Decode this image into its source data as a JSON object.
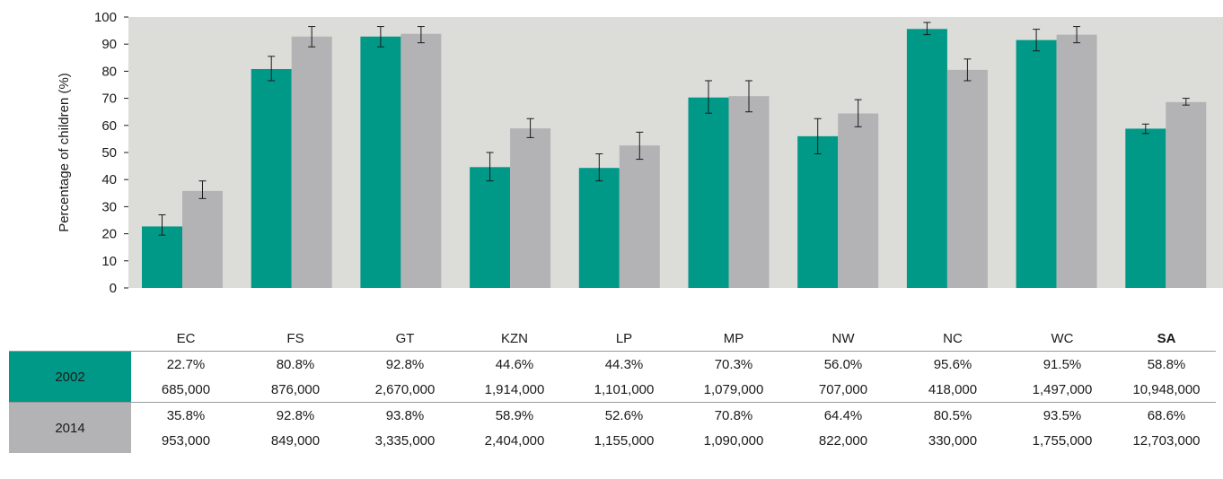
{
  "colors": {
    "series_2002": "#009988",
    "series_2014": "#b3b3b6",
    "plot_background": "#dcdcd9",
    "error_bar": "#1a1a1a"
  },
  "chart_data": {
    "type": "bar",
    "ylabel": "Percentage of children (%)",
    "ylim": [
      0,
      100
    ],
    "yticks": [
      "0",
      "10",
      "20",
      "30",
      "40",
      "50",
      "60",
      "70",
      "80",
      "90",
      "100"
    ],
    "grid": false,
    "categories": [
      "EC",
      "FS",
      "GT",
      "KZN",
      "LP",
      "MP",
      "NW",
      "NC",
      "WC",
      "SA"
    ],
    "series": [
      {
        "name": "2002",
        "values": [
          22.7,
          80.8,
          92.8,
          44.6,
          44.3,
          70.3,
          56.0,
          95.6,
          91.5,
          58.8
        ],
        "error_low": [
          19.5,
          76.5,
          89.0,
          39.5,
          39.5,
          64.5,
          49.5,
          93.5,
          87.5,
          57.0
        ],
        "error_high": [
          27.0,
          85.5,
          96.5,
          50.0,
          49.5,
          76.5,
          62.5,
          98.0,
          95.5,
          60.5
        ]
      },
      {
        "name": "2014",
        "values": [
          35.8,
          92.8,
          93.8,
          58.9,
          52.6,
          70.8,
          64.4,
          80.5,
          93.5,
          68.6
        ],
        "error_low": [
          33.0,
          89.0,
          90.5,
          55.5,
          47.5,
          65.0,
          59.5,
          76.5,
          90.5,
          67.5
        ],
        "error_high": [
          39.5,
          96.5,
          96.5,
          62.5,
          57.5,
          76.5,
          69.5,
          84.5,
          96.5,
          70.0
        ]
      }
    ]
  },
  "table": {
    "headers": [
      "EC",
      "FS",
      "GT",
      "KZN",
      "LP",
      "MP",
      "NW",
      "NC",
      "WC",
      "SA"
    ],
    "rows": [
      {
        "year": "2002",
        "percents": [
          "22.7%",
          "80.8%",
          "92.8%",
          "44.6%",
          "44.3%",
          "70.3%",
          "56.0%",
          "95.6%",
          "91.5%",
          "58.8%"
        ],
        "counts": [
          "685,000",
          "876,000",
          "2,670,000",
          "1,914,000",
          "1,101,000",
          "1,079,000",
          "707,000",
          "418,000",
          "1,497,000",
          "10,948,000"
        ]
      },
      {
        "year": "2014",
        "percents": [
          "35.8%",
          "92.8%",
          "93.8%",
          "58.9%",
          "52.6%",
          "70.8%",
          "64.4%",
          "80.5%",
          "93.5%",
          "68.6%"
        ],
        "counts": [
          "953,000",
          "849,000",
          "3,335,000",
          "2,404,000",
          "1,155,000",
          "1,090,000",
          "822,000",
          "330,000",
          "1,755,000",
          "12,703,000"
        ]
      }
    ]
  }
}
